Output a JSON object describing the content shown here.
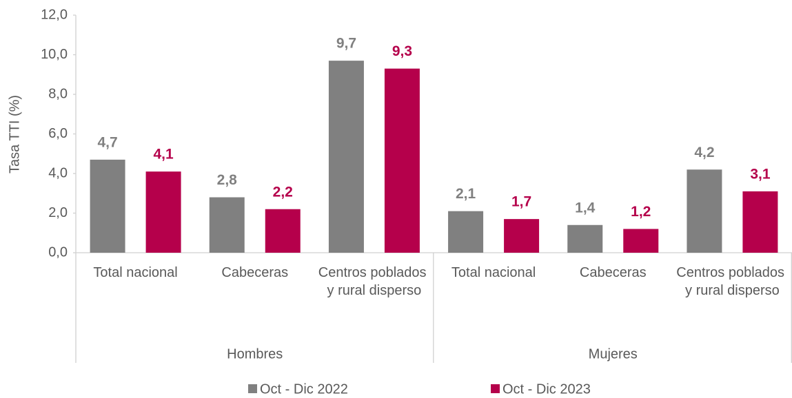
{
  "chart_data": {
    "type": "bar",
    "ylabel": "Tasa TTI (%)",
    "groups": [
      "Hombres",
      "Mujeres"
    ],
    "categories": [
      "Total nacional",
      "Cabeceras",
      "Centros poblados y rural disperso",
      "Total nacional",
      "Cabeceras",
      "Centros poblados y rural disperso"
    ],
    "series": [
      {
        "name": "Oct - Dic 2022",
        "color": "#808080",
        "values": [
          4.7,
          2.8,
          9.7,
          2.1,
          1.4,
          4.2
        ],
        "value_labels": [
          "4,7",
          "2,8",
          "9,7",
          "2,1",
          "1,4",
          "4,2"
        ]
      },
      {
        "name": "Oct - Dic 2023",
        "color": "#b5004b",
        "values": [
          4.1,
          2.2,
          9.3,
          1.7,
          1.2,
          3.1
        ],
        "value_labels": [
          "4,1",
          "2,2",
          "9,3",
          "1,7",
          "1,2",
          "3,1"
        ]
      }
    ],
    "ylim": [
      0,
      12
    ],
    "yticks": [
      {
        "value": 0,
        "label": "0,0"
      },
      {
        "value": 2,
        "label": "2,0"
      },
      {
        "value": 4,
        "label": "4,0"
      },
      {
        "value": 6,
        "label": "6,0"
      },
      {
        "value": 8,
        "label": "8,0"
      },
      {
        "value": 10,
        "label": "10,0"
      },
      {
        "value": 12,
        "label": "12,0"
      }
    ],
    "legend": "bottom"
  }
}
